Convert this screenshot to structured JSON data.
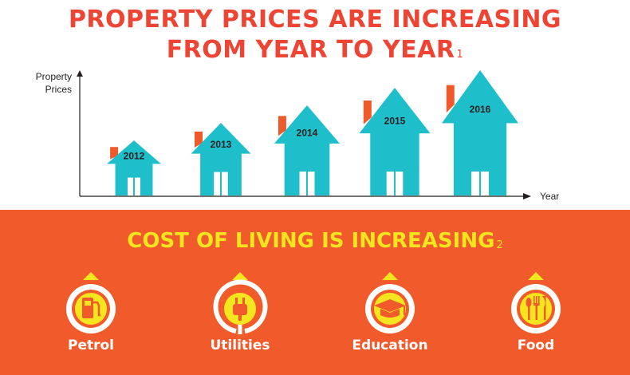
{
  "heading": {
    "line1": "PROPERTY PRICES ARE INCREASING",
    "line2": "FROM YEAR TO YEAR",
    "footnote": "1"
  },
  "chart_data": {
    "type": "bar",
    "ylabel_line1": "Property",
    "ylabel_line2": "Prices",
    "xlabel": "Year",
    "categories": [
      "2012",
      "2013",
      "2014",
      "2015",
      "2016"
    ],
    "values": [
      1,
      2,
      3,
      4,
      5
    ],
    "mark": "house-icon",
    "colors": {
      "house": "#1ebfca",
      "chimney": "#ee5a2a",
      "axis": "#231f20"
    }
  },
  "cost_section": {
    "title": "COST OF LIVING IS INCREASING",
    "footnote": "2",
    "background": "#f15a2b",
    "accent": "#f4e51f",
    "items": [
      {
        "label": "Petrol",
        "icon": "fuel-pump-icon"
      },
      {
        "label": "Utilities",
        "icon": "plug-icon"
      },
      {
        "label": "Education",
        "icon": "graduation-cap-icon"
      },
      {
        "label": "Food",
        "icon": "cutlery-icon"
      }
    ]
  }
}
